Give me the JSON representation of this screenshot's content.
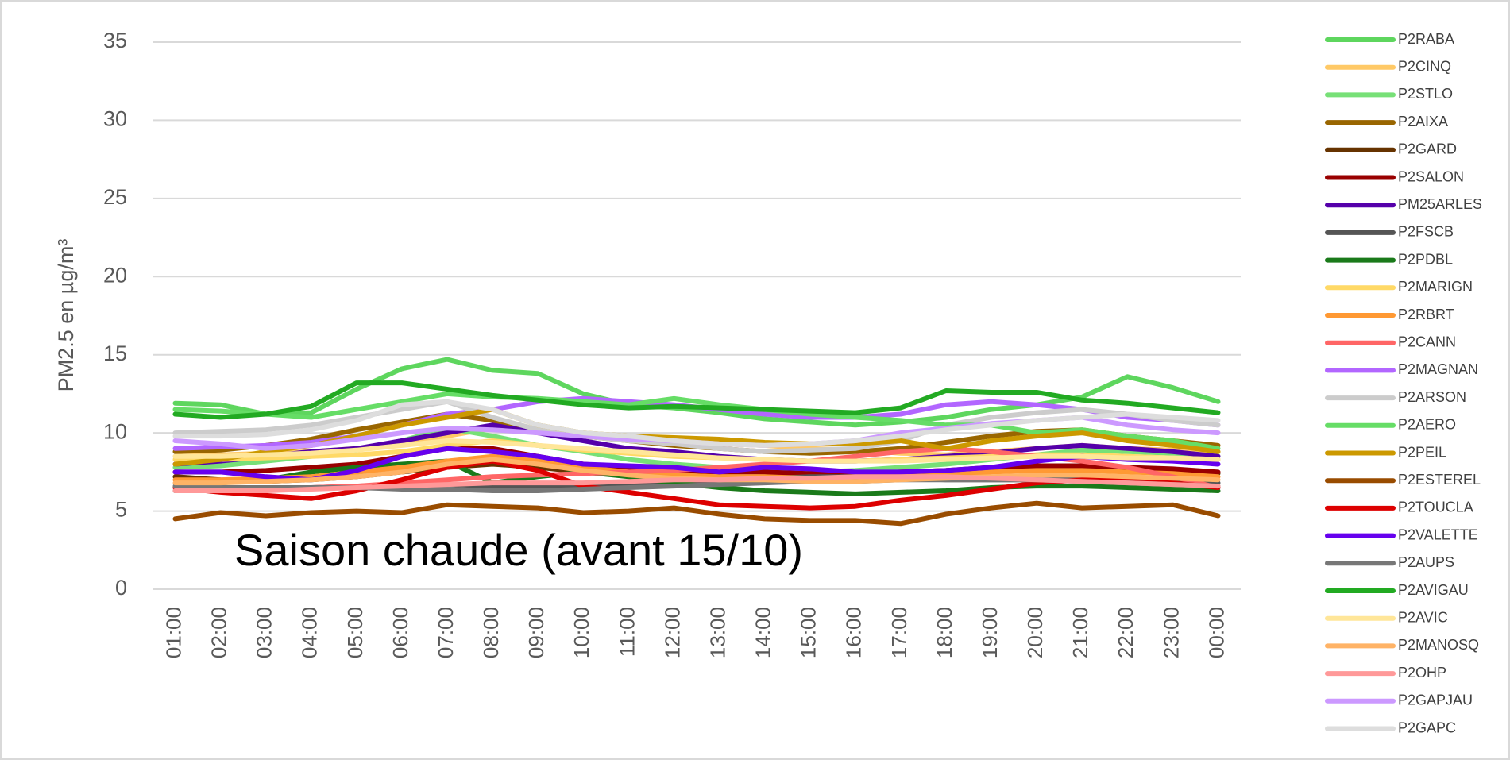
{
  "chart_data": {
    "type": "line",
    "y_label": "PM2.5 en µg/m³",
    "annotation": "Saison chaude (avant 15/10)",
    "categories": [
      "01:00",
      "02:00",
      "03:00",
      "04:00",
      "05:00",
      "06:00",
      "07:00",
      "08:00",
      "09:00",
      "10:00",
      "11:00",
      "12:00",
      "13:00",
      "14:00",
      "15:00",
      "16:00",
      "17:00",
      "18:00",
      "19:00",
      "20:00",
      "21:00",
      "22:00",
      "23:00",
      "00:00"
    ],
    "ylim": [
      0,
      35
    ],
    "yticks": [
      0,
      5,
      10,
      15,
      20,
      25,
      30,
      35
    ],
    "grid": true,
    "legend": "right",
    "series": [
      {
        "name": "P2RABA",
        "color": "#5ed65e",
        "values": [
          11.9,
          11.8,
          11.2,
          11.3,
          12.8,
          14.1,
          14.7,
          14.0,
          13.8,
          12.5,
          11.8,
          11.6,
          11.3,
          10.9,
          10.7,
          10.5,
          10.7,
          11.0,
          11.5,
          11.8,
          12.3,
          13.6,
          12.9,
          12.0
        ]
      },
      {
        "name": "P2CINQ",
        "color": "#ffc966",
        "values": [
          8.5,
          8.6,
          8.7,
          8.8,
          9.0,
          9.3,
          9.8,
          10.3,
          10.0,
          9.8,
          9.6,
          9.5,
          9.3,
          9.2,
          9.0,
          8.9,
          8.7,
          8.6,
          8.8,
          9.0,
          9.2,
          9.0,
          8.9,
          8.8
        ]
      },
      {
        "name": "P2STLO",
        "color": "#77e077",
        "values": [
          7.8,
          7.9,
          8.2,
          8.5,
          8.9,
          9.5,
          10.3,
          9.8,
          9.2,
          8.8,
          8.3,
          8.0,
          7.8,
          7.6,
          7.5,
          7.6,
          7.8,
          8.0,
          8.3,
          8.6,
          8.9,
          8.8,
          8.7,
          8.5
        ]
      },
      {
        "name": "P2AIXA",
        "color": "#996600",
        "values": [
          8.8,
          8.9,
          9.2,
          9.6,
          10.2,
          10.7,
          11.2,
          10.8,
          10.2,
          9.8,
          9.5,
          9.2,
          9.0,
          8.8,
          8.7,
          8.8,
          9.0,
          9.4,
          9.8,
          10.1,
          10.2,
          9.8,
          9.5,
          9.2
        ]
      },
      {
        "name": "P2GARD",
        "color": "#663300",
        "values": [
          7.2,
          7.0,
          6.9,
          7.0,
          7.2,
          7.5,
          7.8,
          8.0,
          7.8,
          7.5,
          7.3,
          7.2,
          7.1,
          7.2,
          7.3,
          7.4,
          7.5,
          7.6,
          7.7,
          7.8,
          7.7,
          7.6,
          7.5,
          7.4
        ]
      },
      {
        "name": "P2SALON",
        "color": "#990000",
        "values": [
          7.5,
          7.5,
          7.6,
          7.8,
          8.0,
          8.5,
          9.0,
          9.0,
          8.5,
          8.0,
          7.8,
          7.6,
          7.5,
          7.5,
          7.4,
          7.4,
          7.5,
          7.6,
          7.8,
          7.9,
          7.9,
          7.8,
          7.7,
          7.5
        ]
      },
      {
        "name": "PM25ARLES",
        "color": "#5500aa",
        "values": [
          8.0,
          8.2,
          8.5,
          8.8,
          9.0,
          9.5,
          10.0,
          10.5,
          10.0,
          9.5,
          9.0,
          8.8,
          8.5,
          8.3,
          8.2,
          8.2,
          8.3,
          8.5,
          8.7,
          9.0,
          9.2,
          9.0,
          8.8,
          8.5
        ]
      },
      {
        "name": "P2FSCB",
        "color": "#555555",
        "values": [
          6.3,
          6.3,
          6.4,
          6.5,
          6.6,
          6.7,
          6.7,
          6.6,
          6.5,
          6.6,
          6.7,
          6.8,
          7.0,
          7.1,
          7.2,
          7.2,
          7.1,
          7.0,
          7.0,
          7.0,
          7.0,
          7.0,
          6.9,
          6.8
        ]
      },
      {
        "name": "P2PDBL",
        "color": "#1a7a1a",
        "values": [
          6.5,
          6.8,
          7.0,
          7.5,
          7.8,
          8.0,
          8.2,
          6.8,
          7.2,
          7.5,
          7.2,
          6.8,
          6.5,
          6.3,
          6.2,
          6.1,
          6.2,
          6.3,
          6.5,
          6.6,
          6.6,
          6.5,
          6.4,
          6.3
        ]
      },
      {
        "name": "P2MARIGN",
        "color": "#ffd966",
        "values": [
          8.3,
          8.3,
          8.4,
          8.5,
          8.6,
          8.8,
          9.2,
          9.5,
          9.2,
          8.9,
          8.7,
          8.5,
          8.4,
          8.3,
          8.2,
          8.2,
          8.3,
          8.4,
          8.5,
          8.6,
          8.6,
          8.5,
          8.4,
          8.3
        ]
      },
      {
        "name": "P2RBRT",
        "color": "#ff9933",
        "values": [
          7.0,
          7.0,
          7.1,
          7.2,
          7.5,
          7.8,
          8.2,
          8.5,
          8.2,
          7.8,
          7.5,
          7.3,
          7.2,
          7.2,
          7.1,
          7.1,
          7.2,
          7.3,
          7.5,
          7.6,
          7.6,
          7.5,
          7.4,
          7.2
        ]
      },
      {
        "name": "P2CANN",
        "color": "#ff6666",
        "values": [
          6.5,
          6.4,
          6.4,
          6.5,
          6.6,
          6.8,
          7.0,
          7.2,
          7.3,
          7.4,
          7.5,
          7.6,
          7.8,
          8.0,
          8.2,
          8.5,
          8.8,
          9.0,
          8.8,
          8.5,
          8.2,
          7.8,
          7.2,
          6.5
        ]
      },
      {
        "name": "P2MAGNAN",
        "color": "#b266ff",
        "values": [
          9.0,
          9.1,
          9.2,
          9.4,
          9.8,
          10.5,
          11.2,
          11.5,
          12.0,
          12.2,
          12.0,
          11.8,
          11.5,
          11.2,
          11.0,
          11.0,
          11.2,
          11.8,
          12.0,
          11.8,
          11.5,
          11.0,
          10.8,
          10.5
        ]
      },
      {
        "name": "P2ARSON",
        "color": "#cccccc",
        "values": [
          10.0,
          10.1,
          10.2,
          10.5,
          11.0,
          11.5,
          12.0,
          11.0,
          10.2,
          9.8,
          9.5,
          9.3,
          9.0,
          8.8,
          8.9,
          9.0,
          9.5,
          10.5,
          11.0,
          11.3,
          11.5,
          11.2,
          10.8,
          10.5
        ]
      },
      {
        "name": "P2AERO",
        "color": "#66dd66",
        "values": [
          11.5,
          11.4,
          11.2,
          11.0,
          11.5,
          12.0,
          12.5,
          12.3,
          12.2,
          12.0,
          11.8,
          12.2,
          11.8,
          11.5,
          11.2,
          11.0,
          10.8,
          10.5,
          10.5,
          10.0,
          10.2,
          9.8,
          9.5,
          9.0
        ]
      },
      {
        "name": "P2PEIL",
        "color": "#cc9900",
        "values": [
          8.0,
          8.3,
          8.8,
          9.2,
          9.8,
          10.5,
          11.0,
          11.5,
          10.5,
          10.0,
          9.8,
          9.7,
          9.6,
          9.4,
          9.3,
          9.3,
          9.5,
          9.0,
          9.5,
          9.8,
          10.0,
          9.5,
          9.2,
          8.8
        ]
      },
      {
        "name": "P2ESTEREL",
        "color": "#994c00",
        "values": [
          4.5,
          4.9,
          4.7,
          4.9,
          5.0,
          4.9,
          5.4,
          5.3,
          5.2,
          4.9,
          5.0,
          5.2,
          4.8,
          4.5,
          4.4,
          4.4,
          4.2,
          4.8,
          5.2,
          5.5,
          5.2,
          5.3,
          5.4,
          4.7
        ]
      },
      {
        "name": "P2TOUCLA",
        "color": "#dd0000",
        "values": [
          6.5,
          6.2,
          6.0,
          5.8,
          6.3,
          7.0,
          7.8,
          8.2,
          7.6,
          6.6,
          6.2,
          5.8,
          5.4,
          5.3,
          5.2,
          5.3,
          5.7,
          6.0,
          6.4,
          6.8,
          7.0,
          7.0,
          6.8,
          6.5
        ]
      },
      {
        "name": "P2VALETTE",
        "color": "#6600ee",
        "values": [
          7.5,
          7.5,
          7.2,
          7.0,
          7.6,
          8.5,
          9.0,
          8.8,
          8.5,
          8.0,
          7.9,
          7.8,
          7.5,
          7.8,
          7.7,
          7.5,
          7.5,
          7.6,
          7.8,
          8.2,
          8.5,
          8.3,
          8.2,
          8.0
        ]
      },
      {
        "name": "P2AUPS",
        "color": "#777777",
        "values": [
          6.6,
          6.5,
          6.5,
          6.5,
          6.5,
          6.4,
          6.4,
          6.3,
          6.3,
          6.4,
          6.5,
          6.6,
          6.7,
          6.8,
          6.9,
          6.9,
          7.0,
          7.0,
          7.0,
          7.0,
          6.9,
          6.8,
          6.7,
          6.6
        ]
      },
      {
        "name": "P2AVIGAU",
        "color": "#22aa22",
        "values": [
          11.2,
          11.0,
          11.2,
          11.7,
          13.2,
          13.2,
          12.8,
          12.4,
          12.1,
          11.8,
          11.6,
          11.7,
          11.6,
          11.5,
          11.4,
          11.3,
          11.6,
          12.7,
          12.6,
          12.6,
          12.1,
          11.9,
          11.6,
          11.3
        ]
      },
      {
        "name": "P2AVIC",
        "color": "#ffe699",
        "values": [
          8.5,
          8.5,
          8.6,
          8.7,
          8.9,
          9.2,
          9.5,
          9.4,
          9.2,
          9.0,
          8.8,
          8.6,
          8.4,
          8.3,
          8.2,
          8.2,
          8.2,
          8.3,
          8.4,
          8.5,
          8.5,
          8.4,
          8.4,
          8.3
        ]
      },
      {
        "name": "P2MANOSQ",
        "color": "#ffb366",
        "values": [
          6.8,
          6.8,
          6.9,
          7.0,
          7.2,
          7.5,
          8.0,
          8.3,
          8.0,
          7.6,
          7.3,
          7.1,
          7.0,
          7.0,
          6.9,
          6.9,
          7.0,
          7.1,
          7.2,
          7.3,
          7.3,
          7.2,
          7.1,
          7.0
        ]
      },
      {
        "name": "P2OHP",
        "color": "#ff9999",
        "values": [
          6.3,
          6.3,
          6.3,
          6.4,
          6.5,
          6.6,
          6.7,
          6.8,
          6.8,
          6.8,
          6.9,
          7.0,
          7.0,
          7.1,
          7.1,
          7.2,
          7.2,
          7.2,
          7.1,
          7.0,
          6.9,
          6.8,
          6.7,
          6.6
        ]
      },
      {
        "name": "P2GAPJAU",
        "color": "#cc99ff",
        "values": [
          9.5,
          9.3,
          9.0,
          9.2,
          9.6,
          10.0,
          10.3,
          10.2,
          10.0,
          9.8,
          9.6,
          9.5,
          9.3,
          9.2,
          9.3,
          9.5,
          10.0,
          10.3,
          10.6,
          10.8,
          11.0,
          10.5,
          10.2,
          10.0
        ]
      },
      {
        "name": "P2GAPC",
        "color": "#dddddd",
        "values": [
          9.8,
          9.8,
          9.9,
          10.2,
          10.8,
          11.8,
          12.0,
          11.5,
          10.5,
          10.0,
          9.8,
          9.5,
          9.3,
          9.2,
          9.3,
          9.5,
          9.8,
          10.2,
          10.5,
          10.8,
          11.0,
          11.2,
          11.0,
          10.8
        ]
      }
    ]
  }
}
